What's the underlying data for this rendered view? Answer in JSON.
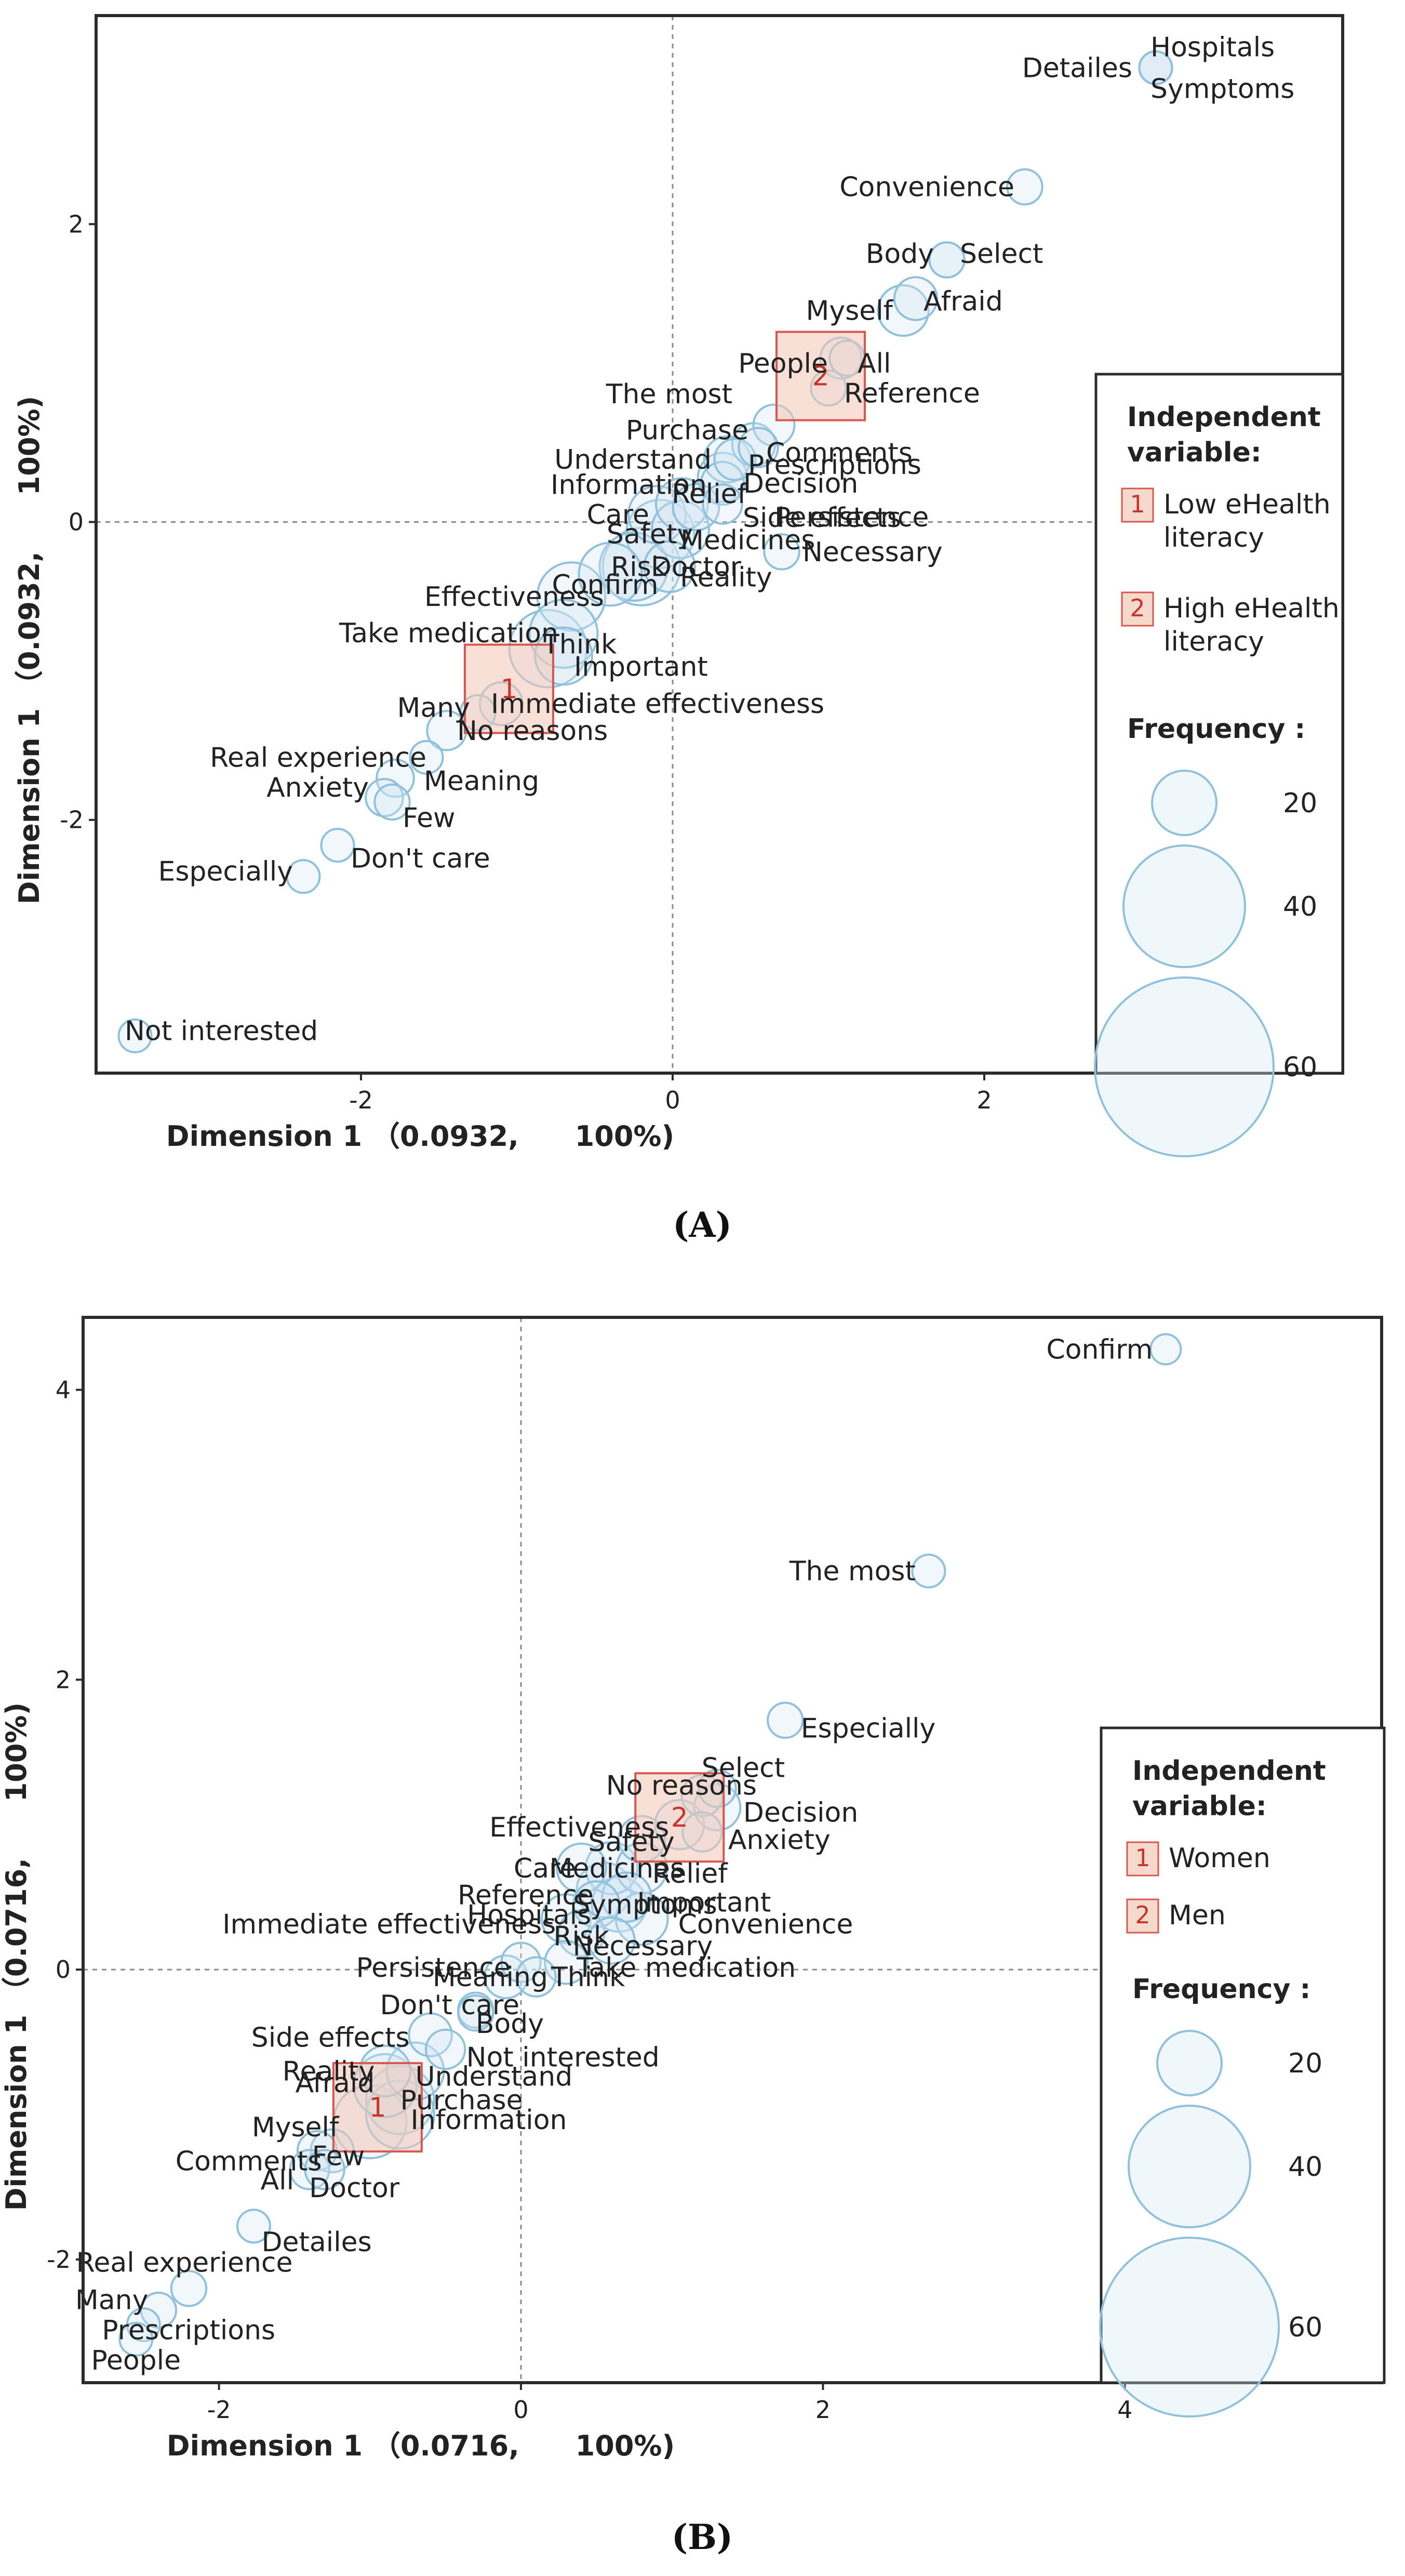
{
  "chart_data": [
    {
      "type": "scatter",
      "panel": "A",
      "caption": "(A)",
      "xlabel": "Dimension 1 （0.0932,　　100%)",
      "ylabel": "Dimension 1 （0.0932,　　100%)",
      "xlim": [
        -3.7,
        4.3
      ],
      "ylim": [
        -3.7,
        3.4
      ],
      "xticks": [
        -2,
        0,
        2
      ],
      "yticks": [
        -2,
        0,
        2
      ],
      "points": [
        {
          "label": "Hospitals",
          "x": 3.1,
          "y": 3.05,
          "freq": 5
        },
        {
          "label": "Detailes",
          "x": 3.1,
          "y": 3.05,
          "freq": 5
        },
        {
          "label": "Symptoms",
          "x": 3.1,
          "y": 3.05,
          "freq": 5
        },
        {
          "label": "Convenience",
          "x": 2.26,
          "y": 2.25,
          "freq": 6
        },
        {
          "label": "Body",
          "x": 1.76,
          "y": 1.76,
          "freq": 6
        },
        {
          "label": "Select",
          "x": 1.76,
          "y": 1.76,
          "freq": 6
        },
        {
          "label": "Myself",
          "x": 1.48,
          "y": 1.42,
          "freq": 15
        },
        {
          "label": "Afraid",
          "x": 1.56,
          "y": 1.5,
          "freq": 10
        },
        {
          "label": "People",
          "x": 1.08,
          "y": 1.1,
          "freq": 9
        },
        {
          "label": "All",
          "x": 1.12,
          "y": 1.1,
          "freq": 6
        },
        {
          "label": "Reference",
          "x": 1.0,
          "y": 0.9,
          "freq": 6
        },
        {
          "label": "The most",
          "x": 0.65,
          "y": 0.65,
          "freq": 9
        },
        {
          "label": "Purchase",
          "x": 0.52,
          "y": 0.52,
          "freq": 10
        },
        {
          "label": "Comments",
          "x": 0.55,
          "y": 0.5,
          "freq": 8
        },
        {
          "label": "Understand",
          "x": 0.35,
          "y": 0.42,
          "freq": 12
        },
        {
          "label": "Prescriptions",
          "x": 0.4,
          "y": 0.42,
          "freq": 9
        },
        {
          "label": "Information",
          "x": 0.32,
          "y": 0.3,
          "freq": 14
        },
        {
          "label": "Decision",
          "x": 0.32,
          "y": 0.26,
          "freq": 10
        },
        {
          "label": "Care",
          "x": -0.1,
          "y": 0.05,
          "freq": 20
        },
        {
          "label": "Relief",
          "x": 0.06,
          "y": 0.12,
          "freq": 16
        },
        {
          "label": "Side effects",
          "x": 0.15,
          "y": 0.1,
          "freq": 12
        },
        {
          "label": "Safety",
          "x": -0.08,
          "y": -0.08,
          "freq": 30
        },
        {
          "label": "Persistence",
          "x": 0.32,
          "y": 0.12,
          "freq": 8
        },
        {
          "label": "Medicines",
          "x": 0.05,
          "y": -0.05,
          "freq": 20
        },
        {
          "label": "Risk",
          "x": -0.2,
          "y": -0.3,
          "freq": 40
        },
        {
          "label": "Necessary",
          "x": 0.7,
          "y": -0.2,
          "freq": 6
        },
        {
          "label": "Confirm",
          "x": -0.4,
          "y": -0.35,
          "freq": 25
        },
        {
          "label": "Doctor",
          "x": -0.25,
          "y": -0.3,
          "freq": 30
        },
        {
          "label": "Reality",
          "x": -0.02,
          "y": -0.3,
          "freq": 15
        },
        {
          "label": "Effectiveness",
          "x": -0.65,
          "y": -0.5,
          "freq": 30
        },
        {
          "label": "Think",
          "x": -0.7,
          "y": -0.75,
          "freq": 30
        },
        {
          "label": "Take medication",
          "x": -0.8,
          "y": -0.85,
          "freq": 40
        },
        {
          "label": "Important",
          "x": -0.7,
          "y": -0.9,
          "freq": 20
        },
        {
          "label": "Many",
          "x": -1.25,
          "y": -1.28,
          "freq": 6
        },
        {
          "label": "Immediate effectiveness",
          "x": -1.1,
          "y": -1.22,
          "freq": 10
        },
        {
          "label": "No reasons",
          "x": -1.45,
          "y": -1.4,
          "freq": 8
        },
        {
          "label": "Real experience",
          "x": -1.58,
          "y": -1.58,
          "freq": 5
        },
        {
          "label": "Meaning",
          "x": -1.78,
          "y": -1.72,
          "freq": 7
        },
        {
          "label": "Anxiety",
          "x": -1.85,
          "y": -1.85,
          "freq": 7
        },
        {
          "label": "Few",
          "x": -1.8,
          "y": -1.88,
          "freq": 6
        },
        {
          "label": "Don't care",
          "x": -2.15,
          "y": -2.17,
          "freq": 5
        },
        {
          "label": "Especially",
          "x": -2.37,
          "y": -2.38,
          "freq": 5
        },
        {
          "label": "Not interested",
          "x": -3.45,
          "y": -3.45,
          "freq": 5
        }
      ],
      "groups": [
        {
          "id": "1",
          "name": "Low eHealth literacy",
          "x": -1.05,
          "y": -1.12
        },
        {
          "id": "2",
          "name": "High eHealth literacy",
          "x": 0.95,
          "y": 0.98
        }
      ],
      "legend": {
        "position": "right",
        "title": "Independent variable:",
        "items": [
          {
            "id": "1",
            "label_lines": [
              "Low eHealth",
              "literacy"
            ]
          },
          {
            "id": "2",
            "label_lines": [
              "High eHealth",
              "literacy"
            ]
          }
        ],
        "size_title": "Frequency :",
        "sizes": [
          20,
          40,
          60
        ]
      }
    },
    {
      "type": "scatter",
      "panel": "B",
      "caption": "(B)",
      "xlabel": "Dimension 1 （0.0716,　　100%)",
      "ylabel": "Dimension 1 （0.0716,　　100%)",
      "xlim": [
        -2.9,
        5.7
      ],
      "ylim": [
        -2.85,
        4.5
      ],
      "xticks": [
        -2,
        0,
        2,
        4
      ],
      "yticks": [
        -2,
        0,
        2,
        4
      ],
      "points": [
        {
          "label": "Confirm",
          "x": 4.27,
          "y": 4.28,
          "freq": 4
        },
        {
          "label": "The most",
          "x": 2.7,
          "y": 2.75,
          "freq": 5
        },
        {
          "label": "Especially",
          "x": 1.75,
          "y": 1.72,
          "freq": 6
        },
        {
          "label": "Select",
          "x": 1.3,
          "y": 1.25,
          "freq": 7
        },
        {
          "label": "No reasons",
          "x": 1.2,
          "y": 1.2,
          "freq": 9
        },
        {
          "label": "Decision",
          "x": 1.3,
          "y": 1.12,
          "freq": 12
        },
        {
          "label": "Effectiveness",
          "x": 1.05,
          "y": 1.0,
          "freq": 14
        },
        {
          "label": "Safety",
          "x": 0.8,
          "y": 0.9,
          "freq": 12
        },
        {
          "label": "Anxiety",
          "x": 1.2,
          "y": 0.95,
          "freq": 8
        },
        {
          "label": "Relief",
          "x": 0.8,
          "y": 0.7,
          "freq": 15
        },
        {
          "label": "Care",
          "x": 0.4,
          "y": 0.7,
          "freq": 14
        },
        {
          "label": "Medicines",
          "x": 0.6,
          "y": 0.7,
          "freq": 16
        },
        {
          "label": "Reference",
          "x": 0.55,
          "y": 0.55,
          "freq": 18
        },
        {
          "label": "Important",
          "x": 0.7,
          "y": 0.5,
          "freq": 14
        },
        {
          "label": "Hospitals",
          "x": 0.5,
          "y": 0.45,
          "freq": 12
        },
        {
          "label": "Symptoms",
          "x": 0.65,
          "y": 0.45,
          "freq": 18
        },
        {
          "label": "Convenience",
          "x": 0.8,
          "y": 0.35,
          "freq": 16
        },
        {
          "label": "Immediate effectiveness",
          "x": 0.3,
          "y": 0.35,
          "freq": 14
        },
        {
          "label": "Risk",
          "x": 0.4,
          "y": 0.25,
          "freq": 12
        },
        {
          "label": "Necessary",
          "x": 0.6,
          "y": 0.2,
          "freq": 12
        },
        {
          "label": "Persistence",
          "x": 0.0,
          "y": 0.05,
          "freq": 8
        },
        {
          "label": "Take medication",
          "x": 0.3,
          "y": 0.05,
          "freq": 10
        },
        {
          "label": "Meaning",
          "x": -0.1,
          "y": -0.05,
          "freq": 10
        },
        {
          "label": "Think",
          "x": 0.1,
          "y": -0.05,
          "freq": 8
        },
        {
          "label": "Don't care",
          "x": -0.3,
          "y": -0.28,
          "freq": 6
        },
        {
          "label": "Body",
          "x": -0.3,
          "y": -0.3,
          "freq": 6
        },
        {
          "label": "Side effects",
          "x": -0.6,
          "y": -0.45,
          "freq": 10
        },
        {
          "label": "Not interested",
          "x": -0.5,
          "y": -0.55,
          "freq": 8
        },
        {
          "label": "Reality",
          "x": -0.9,
          "y": -0.7,
          "freq": 15
        },
        {
          "label": "Understand",
          "x": -0.7,
          "y": -0.7,
          "freq": 20
        },
        {
          "label": "Afraid",
          "x": -0.9,
          "y": -0.8,
          "freq": 25
        },
        {
          "label": "Purchase",
          "x": -0.8,
          "y": -0.9,
          "freq": 30
        },
        {
          "label": "Myself",
          "x": -1.0,
          "y": -1.05,
          "freq": 35
        },
        {
          "label": "Information",
          "x": -0.8,
          "y": -1.0,
          "freq": 30
        },
        {
          "label": "Comments",
          "x": -1.25,
          "y": -1.25,
          "freq": 10
        },
        {
          "label": "Few",
          "x": -1.35,
          "y": -1.25,
          "freq": 8
        },
        {
          "label": "All",
          "x": -1.4,
          "y": -1.38,
          "freq": 8
        },
        {
          "label": "Doctor",
          "x": -1.3,
          "y": -1.38,
          "freq": 8
        },
        {
          "label": "Detailes",
          "x": -1.77,
          "y": -1.77,
          "freq": 5
        },
        {
          "label": "Real experience",
          "x": -2.2,
          "y": -2.2,
          "freq": 6
        },
        {
          "label": "Many",
          "x": -2.4,
          "y": -2.35,
          "freq": 6
        },
        {
          "label": "Prescriptions",
          "x": -2.5,
          "y": -2.45,
          "freq": 5
        },
        {
          "label": "People",
          "x": -2.55,
          "y": -2.55,
          "freq": 5
        }
      ],
      "groups": [
        {
          "id": "1",
          "name": "Women",
          "x": -0.95,
          "y": -0.95
        },
        {
          "id": "2",
          "name": "Men",
          "x": 1.05,
          "y": 1.05
        }
      ],
      "legend": {
        "position": "right",
        "title": "Independent variable:",
        "items": [
          {
            "id": "1",
            "label_lines": [
              "Women"
            ]
          },
          {
            "id": "2",
            "label_lines": [
              "Men"
            ]
          }
        ],
        "size_title": "Frequency :",
        "sizes": [
          20,
          40,
          60
        ]
      }
    }
  ]
}
